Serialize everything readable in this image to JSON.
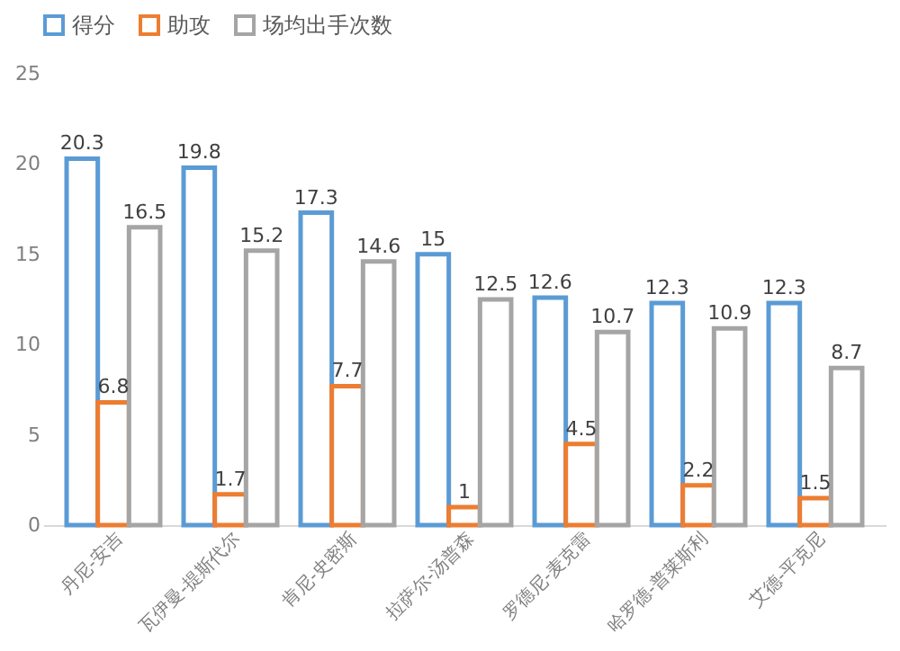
{
  "chart_data": {
    "type": "bar",
    "categories": [
      "丹尼-安吉",
      "瓦伊曼-提斯代尔",
      "肯尼-史密斯",
      "拉萨尔-汤普森",
      "罗德尼-麦克雷",
      "哈罗德-普莱斯利",
      "艾德-平克尼"
    ],
    "series": [
      {
        "name": "得分",
        "color": "#5b9bd5",
        "values": [
          20.3,
          19.8,
          17.3,
          15,
          12.6,
          12.3,
          12.3
        ]
      },
      {
        "name": "助攻",
        "color": "#ed7d31",
        "values": [
          6.8,
          1.7,
          7.7,
          1,
          4.5,
          2.2,
          1.5
        ]
      },
      {
        "name": "场均出手次数",
        "color": "#a5a5a5",
        "values": [
          16.5,
          15.2,
          14.6,
          12.5,
          10.7,
          10.9,
          8.7
        ]
      }
    ],
    "ylim": [
      0,
      25
    ],
    "yticks": [
      0,
      5,
      10,
      15,
      20,
      25
    ],
    "grid": false,
    "legend": "top",
    "data_labels": true
  }
}
